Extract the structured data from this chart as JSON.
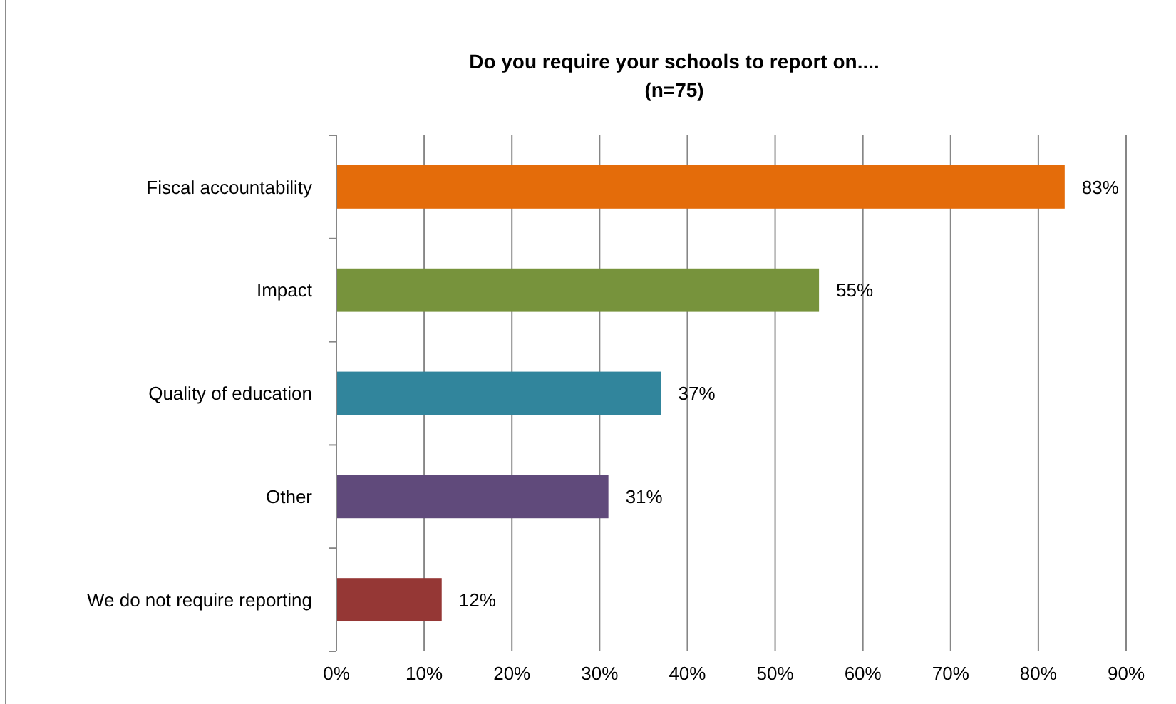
{
  "chart_data": {
    "type": "bar",
    "orientation": "horizontal",
    "title": "Do you require your schools to report on....",
    "subtitle": "(n=75)",
    "categories": [
      "Fiscal accountability",
      "Impact",
      "Quality of education",
      "Other",
      "We do not require reporting"
    ],
    "values": [
      83,
      55,
      37,
      31,
      12
    ],
    "colors": [
      "#e46c0a",
      "#77933c",
      "#31859c",
      "#604a7b",
      "#953735"
    ],
    "value_labels": [
      "83%",
      "55%",
      "37%",
      "31%",
      "12%"
    ],
    "xlim": [
      0,
      90
    ],
    "xticks": [
      {
        "value": 0,
        "label": "0%"
      },
      {
        "value": 10,
        "label": "10%"
      },
      {
        "value": 20,
        "label": "20%"
      },
      {
        "value": 30,
        "label": "30%"
      },
      {
        "value": 40,
        "label": "40%"
      },
      {
        "value": 50,
        "label": "50%"
      },
      {
        "value": 60,
        "label": "60%"
      },
      {
        "value": 70,
        "label": "70%"
      },
      {
        "value": 80,
        "label": "80%"
      },
      {
        "value": 90,
        "label": "90%"
      }
    ],
    "grid": "x"
  }
}
